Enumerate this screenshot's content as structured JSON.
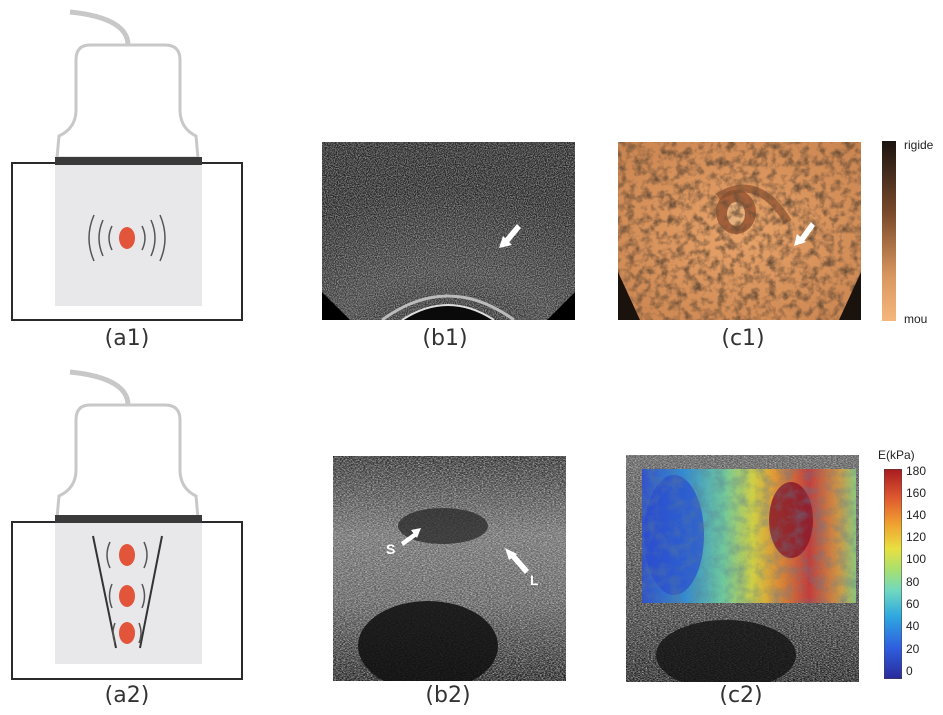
{
  "panels": {
    "a1": {
      "caption": "(a1)"
    },
    "b1": {
      "caption": "(b1)"
    },
    "c1": {
      "caption": "(c1)",
      "scale_top": "rigide",
      "scale_bottom": "mou"
    },
    "a2": {
      "caption": "(a2)"
    },
    "b2": {
      "caption": "(b2)",
      "label_s": "S",
      "label_l": "L"
    },
    "c2": {
      "caption": "(c2)",
      "scale_title": "E(kPa)",
      "ticks": [
        "180",
        "160",
        "140",
        "120",
        "100",
        "80",
        "60",
        "40",
        "20",
        "0"
      ]
    }
  },
  "colors": {
    "probe_outline": "#c8c8c8",
    "probe_band": "#3a3a3a",
    "tissue": "#e8e8ea",
    "lesion": "#e2553a",
    "stiffness_dark": "#1a1410",
    "stiffness_light": "#f5b77c"
  }
}
